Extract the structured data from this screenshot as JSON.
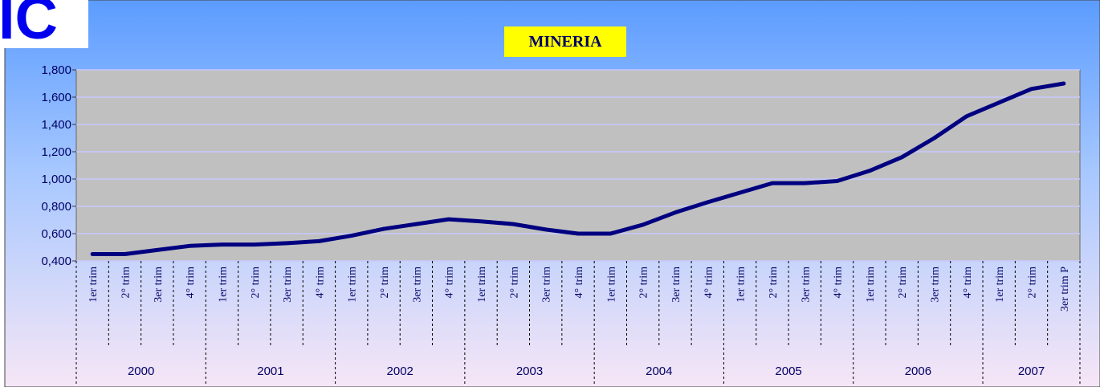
{
  "logo": "IC",
  "chart_data": {
    "type": "line",
    "title": "MINERIA",
    "categories": [
      "1er trim",
      "2° trim",
      "3er trim",
      "4° trim",
      "1er trim",
      "2° trim",
      "3er trim",
      "4° trim",
      "1er trim",
      "2° trim",
      "3er trim",
      "4° trim",
      "1er trim",
      "2° trim",
      "3er trim",
      "4° trim",
      "1er trim",
      "2° trim",
      "3er trim",
      "4° trim",
      "1er trim",
      "2° trim",
      "3er trim",
      "4° trim",
      "1er trim",
      "2° trim",
      "3er trim",
      "4° trim",
      "1er trim",
      "2° trim",
      "3er trim P"
    ],
    "groups": [
      "2000",
      "2001",
      "2002",
      "2003",
      "2004",
      "2005",
      "2006",
      "2007"
    ],
    "series": [
      {
        "color": "#000080",
        "values": [
          450,
          450,
          480,
          510,
          520,
          520,
          530,
          545,
          585,
          635,
          670,
          705,
          690,
          670,
          630,
          600,
          600,
          665,
          755,
          830,
          900,
          970,
          970,
          985,
          1060,
          1160,
          1300,
          1460,
          1560,
          1660,
          1700
        ]
      }
    ],
    "ylim": [
      400,
      1800
    ],
    "yticks": [
      {
        "value": 400,
        "label": "0,400"
      },
      {
        "value": 600,
        "label": "0,600"
      },
      {
        "value": 800,
        "label": "0,800"
      },
      {
        "value": 1000,
        "label": "1,000"
      },
      {
        "value": 1200,
        "label": "1,200"
      },
      {
        "value": 1400,
        "label": "1,400"
      },
      {
        "value": 1600,
        "label": "1,600"
      },
      {
        "value": 1800,
        "label": "1,800"
      }
    ],
    "grid": true
  }
}
